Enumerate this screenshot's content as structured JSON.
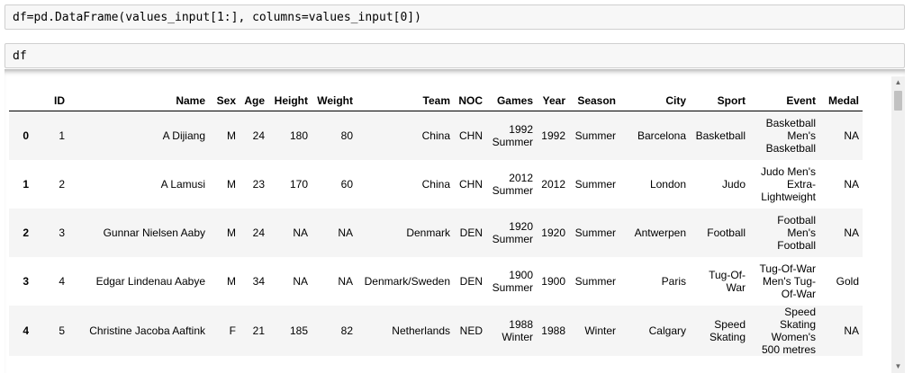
{
  "cells": [
    {
      "code": "df=pd.DataFrame(values_input[1:], columns=values_input[0])"
    },
    {
      "code": "df"
    }
  ],
  "table": {
    "columns": [
      "",
      "ID",
      "Name",
      "Sex",
      "Age",
      "Height",
      "Weight",
      "Team",
      "NOC",
      "Games",
      "Year",
      "Season",
      "City",
      "Sport",
      "Event",
      "Medal"
    ],
    "rows": [
      [
        "0",
        "1",
        "A Dijiang",
        "M",
        "24",
        "180",
        "80",
        "China",
        "CHN",
        "1992 Summer",
        "1992",
        "Summer",
        "Barcelona",
        "Basketball",
        "Basketball Men's Basketball",
        "NA"
      ],
      [
        "1",
        "2",
        "A Lamusi",
        "M",
        "23",
        "170",
        "60",
        "China",
        "CHN",
        "2012 Summer",
        "2012",
        "Summer",
        "London",
        "Judo",
        "Judo Men's Extra-Lightweight",
        "NA"
      ],
      [
        "2",
        "3",
        "Gunnar Nielsen Aaby",
        "M",
        "24",
        "NA",
        "NA",
        "Denmark",
        "DEN",
        "1920 Summer",
        "1920",
        "Summer",
        "Antwerpen",
        "Football",
        "Football Men's Football",
        "NA"
      ],
      [
        "3",
        "4",
        "Edgar Lindenau Aabye",
        "M",
        "34",
        "NA",
        "NA",
        "Denmark/Sweden",
        "DEN",
        "1900 Summer",
        "1900",
        "Summer",
        "Paris",
        "Tug-Of-War",
        "Tug-Of-War Men's Tug-Of-War",
        "Gold"
      ],
      [
        "4",
        "5",
        "Christine Jacoba Aaftink",
        "F",
        "21",
        "185",
        "82",
        "Netherlands",
        "NED",
        "1988 Winter",
        "1988",
        "Winter",
        "Calgary",
        "Speed Skating",
        "Speed Skating Women's 500 metres",
        "NA"
      ]
    ]
  },
  "scrollbar": {
    "up_icon": "triangle-up-icon",
    "down_icon": "triangle-down-icon"
  }
}
